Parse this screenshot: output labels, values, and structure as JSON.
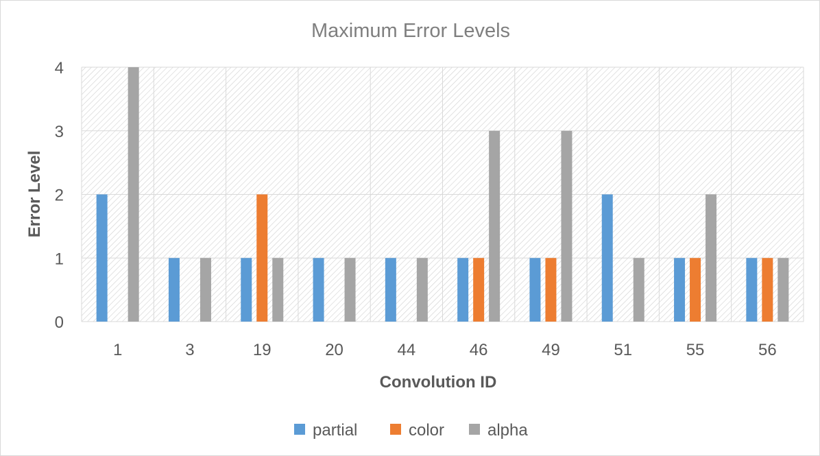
{
  "chart_data": {
    "type": "bar",
    "title": "Maximum Error Levels",
    "xlabel": "Convolution ID",
    "ylabel": "Error Level",
    "categories": [
      "1",
      "3",
      "19",
      "20",
      "44",
      "46",
      "49",
      "51",
      "55",
      "56"
    ],
    "series": [
      {
        "name": "partial",
        "color": "#5b9bd5",
        "values": [
          2,
          1,
          1,
          1,
          1,
          1,
          1,
          2,
          1,
          1
        ]
      },
      {
        "name": "color",
        "color": "#ed7d31",
        "values": [
          0,
          0,
          2,
          0,
          0,
          1,
          1,
          0,
          1,
          1
        ]
      },
      {
        "name": "alpha",
        "color": "#a5a5a5",
        "values": [
          4,
          1,
          1,
          1,
          1,
          3,
          3,
          1,
          2,
          1
        ]
      }
    ],
    "ylim": [
      0,
      4
    ],
    "yticks": [
      "0",
      "1",
      "2",
      "3",
      "4"
    ],
    "grid": true,
    "plot_background": "diagonal hatch",
    "legend_position": "bottom"
  }
}
